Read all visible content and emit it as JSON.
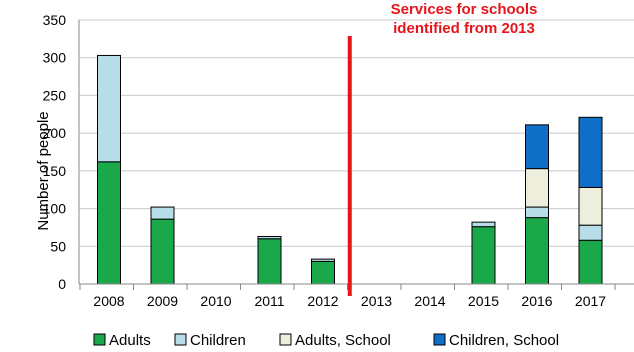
{
  "chart_data": {
    "type": "bar",
    "stacked": true,
    "categories": [
      "2008",
      "2009",
      "2010",
      "2011",
      "2012",
      "2013",
      "2014",
      "2015",
      "2016",
      "2017"
    ],
    "series": [
      {
        "name": "Adults",
        "color": "#1aa84b",
        "values": [
          162,
          86,
          0,
          60,
          30,
          0,
          0,
          76,
          88,
          58
        ]
      },
      {
        "name": "Children",
        "color": "#b7dde8",
        "values": [
          141,
          16,
          0,
          3,
          3,
          0,
          0,
          6,
          14,
          20
        ]
      },
      {
        "name": "Adults, School",
        "color": "#eeeedd",
        "values": [
          0,
          0,
          0,
          0,
          0,
          0,
          0,
          0,
          51,
          50
        ]
      },
      {
        "name": "Children, School",
        "color": "#0f6fc6",
        "values": [
          0,
          0,
          0,
          0,
          0,
          0,
          0,
          0,
          58,
          93
        ]
      }
    ],
    "ylabel": "Number of people",
    "ylim": [
      0,
      350
    ],
    "yticks": [
      0,
      50,
      100,
      150,
      200,
      250,
      300,
      350
    ],
    "grid": true,
    "legend_position": "bottom",
    "annotation": {
      "lines": [
        "Services for schools",
        "identified from 2013"
      ],
      "color": "#e8141c",
      "divider_after_category": "2012"
    }
  }
}
